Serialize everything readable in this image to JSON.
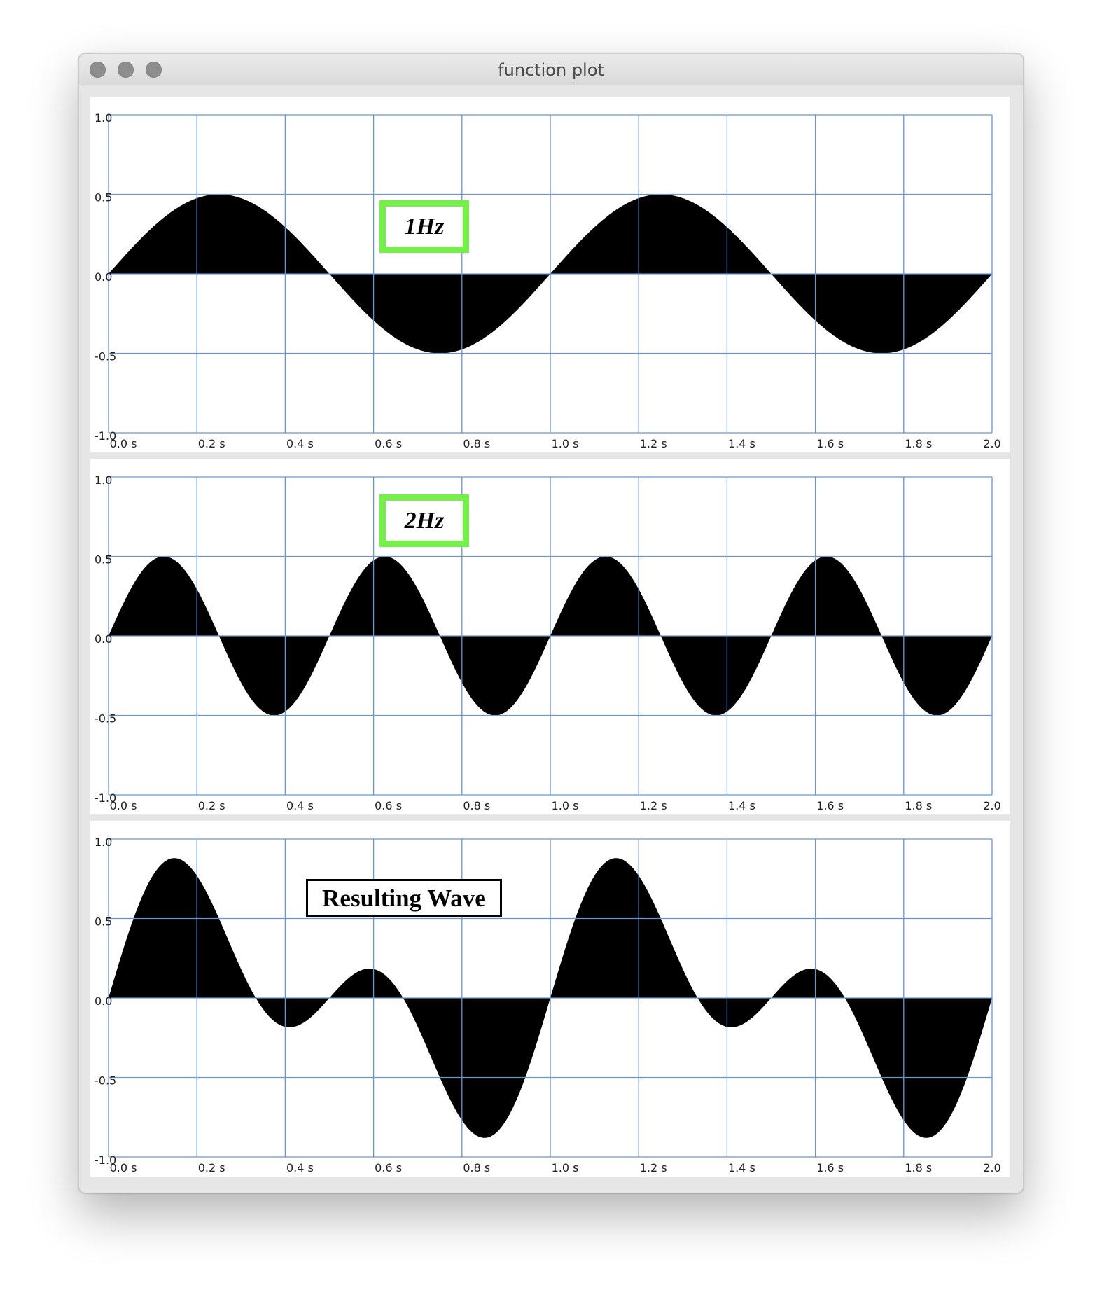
{
  "window": {
    "title": "function plot"
  },
  "plots": [
    {
      "label": "1Hz",
      "label_style": "green-italic",
      "chart_data": {
        "type": "area",
        "function": "0.5*sin(2*pi*1*t)",
        "amplitude": 0.5,
        "frequency_hz": 1,
        "xlim": [
          0.0,
          2.0
        ],
        "ylim": [
          -1.0,
          1.0
        ],
        "x_ticks": [
          "0.0 s",
          "0.2 s",
          "0.4 s",
          "0.6 s",
          "0.8 s",
          "1.0 s",
          "1.2 s",
          "1.4 s",
          "1.6 s",
          "1.8 s",
          "2.0"
        ],
        "y_ticks": [
          "1.0",
          "0.5",
          "0.0",
          "-0.5",
          "-1.0"
        ],
        "grid": true,
        "fill_color": "#000000",
        "grid_color": "#6a93d4"
      }
    },
    {
      "label": "2Hz",
      "label_style": "green-italic",
      "chart_data": {
        "type": "area",
        "function": "0.5*sin(2*pi*2*t)",
        "amplitude": 0.5,
        "frequency_hz": 2,
        "xlim": [
          0.0,
          2.0
        ],
        "ylim": [
          -1.0,
          1.0
        ],
        "x_ticks": [
          "0.0 s",
          "0.2 s",
          "0.4 s",
          "0.6 s",
          "0.8 s",
          "1.0 s",
          "1.2 s",
          "1.4 s",
          "1.6 s",
          "1.8 s",
          "2.0"
        ],
        "y_ticks": [
          "1.0",
          "0.5",
          "0.0",
          "-0.5",
          "-1.0"
        ],
        "grid": true,
        "fill_color": "#000000",
        "grid_color": "#6a93d4"
      }
    },
    {
      "label": "Resulting Wave",
      "label_style": "black-bold",
      "chart_data": {
        "type": "area",
        "function": "0.5*sin(2*pi*1*t) + 0.5*sin(2*pi*2*t)",
        "amplitude": 0.5,
        "frequency_hz": [
          1,
          2
        ],
        "xlim": [
          0.0,
          2.0
        ],
        "ylim": [
          -1.0,
          1.0
        ],
        "x_ticks": [
          "0.0 s",
          "0.2 s",
          "0.4 s",
          "0.6 s",
          "0.8 s",
          "1.0 s",
          "1.2 s",
          "1.4 s",
          "1.6 s",
          "1.8 s",
          "2.0"
        ],
        "y_ticks": [
          "1.0",
          "0.5",
          "0.0",
          "-0.5",
          "-1.0"
        ],
        "grid": true,
        "fill_color": "#000000",
        "grid_color": "#6a93d4"
      }
    }
  ]
}
